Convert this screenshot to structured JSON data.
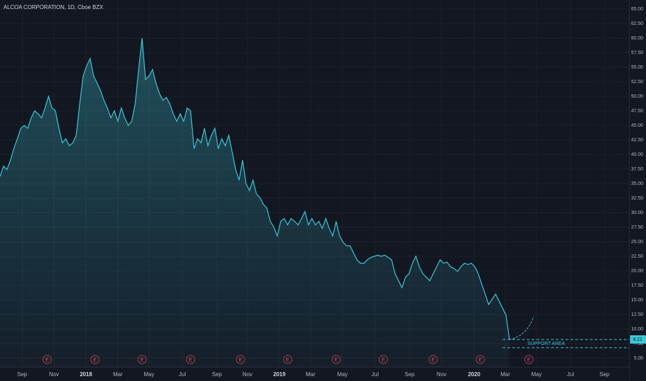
{
  "chart_data": {
    "type": "area",
    "title": "ALCOA CORPORATION, 1D, Cboe BZX",
    "color": "#3cc8d8",
    "values": [
      36.2,
      38,
      37.4,
      39,
      41,
      42.7,
      44.5,
      45,
      44.5,
      46.3,
      47.5,
      47,
      46.3,
      48,
      50,
      48,
      47.5,
      44.5,
      42,
      42.7,
      41.5,
      42,
      43.3,
      48.7,
      53.5,
      55.2,
      56.5,
      53.5,
      52.3,
      51,
      49.3,
      48,
      46.3,
      47.5,
      45.7,
      48,
      46.3,
      45,
      45.7,
      48.7,
      54.6,
      60,
      52.9,
      53.5,
      54.6,
      52.3,
      50.5,
      49.3,
      49.8,
      48.7,
      47,
      45.7,
      47,
      45.7,
      48,
      47.5,
      41,
      42.7,
      42,
      44.5,
      41.5,
      43.3,
      44.5,
      41,
      42.7,
      41.5,
      43.3,
      40.4,
      37.4,
      35.6,
      39,
      35,
      33.8,
      35.6,
      33.2,
      32.6,
      31.4,
      30.8,
      28.5,
      27.5,
      26,
      28.5,
      29,
      27.9,
      29,
      28.5,
      27.9,
      29,
      30.2,
      27.9,
      29,
      27.9,
      28.5,
      27.3,
      29,
      27.3,
      26,
      28.5,
      26,
      24.9,
      24.3,
      24.3,
      23.1,
      21.9,
      21.3,
      21.3,
      21.9,
      22.3,
      22.5,
      22.7,
      22.5,
      22.7,
      22.3,
      21.9,
      19.5,
      18.3,
      17.1,
      18.9,
      19.5,
      21.3,
      22.5,
      20.7,
      19.5,
      18.9,
      18.3,
      19.5,
      20.7,
      21.9,
      21.3,
      21.5,
      20.7,
      20.4,
      19.9,
      20.7,
      21.3,
      21.1,
      21.3,
      20.7,
      19.5,
      17.7,
      16,
      14.2,
      15.1,
      16,
      14.8,
      13.6,
      12.4,
      8.2
    ],
    "xlim": [
      0,
      181.6
    ],
    "xticks": [
      {
        "value": 6.4,
        "label": "Sep"
      },
      {
        "value": 15.6,
        "label": "Nov"
      },
      {
        "value": 24.8,
        "label": "2018"
      },
      {
        "value": 34,
        "label": "Mar"
      },
      {
        "value": 43,
        "label": "May"
      },
      {
        "value": 52.6,
        "label": "Jul"
      },
      {
        "value": 62.6,
        "label": "Sep"
      },
      {
        "value": 71.4,
        "label": "Nov"
      },
      {
        "value": 80.6,
        "label": "2019"
      },
      {
        "value": 89.6,
        "label": "Mar"
      },
      {
        "value": 98.8,
        "label": "May"
      },
      {
        "value": 108.2,
        "label": "Jul"
      },
      {
        "value": 118.2,
        "label": "Sep"
      },
      {
        "value": 127.4,
        "label": "Nov"
      },
      {
        "value": 136.8,
        "label": "2020"
      },
      {
        "value": 145.8,
        "label": "Mar"
      },
      {
        "value": 154.8,
        "label": "May"
      },
      {
        "value": 164.6,
        "label": "Jul"
      },
      {
        "value": 174.4,
        "label": "Sep"
      }
    ],
    "ylim": [
      3.45,
      66.55
    ],
    "yticks": [
      {
        "value": 5,
        "label": "5.00"
      },
      {
        "value": 7.5,
        "label": "7.50"
      },
      {
        "value": 10,
        "label": "10.00"
      },
      {
        "value": 12.5,
        "label": "12.50"
      },
      {
        "value": 15,
        "label": "15.00"
      },
      {
        "value": 17.5,
        "label": "17.50"
      },
      {
        "value": 20,
        "label": "20.00"
      },
      {
        "value": 22.5,
        "label": "22.50"
      },
      {
        "value": 25,
        "label": "25.00"
      },
      {
        "value": 27.5,
        "label": "27.50"
      },
      {
        "value": 30,
        "label": "30.00"
      },
      {
        "value": 32.5,
        "label": "32.50"
      },
      {
        "value": 35,
        "label": "35.00"
      },
      {
        "value": 37.5,
        "label": "37.50"
      },
      {
        "value": 40,
        "label": "40.00"
      },
      {
        "value": 42.5,
        "label": "42.50"
      },
      {
        "value": 45,
        "label": "45.00"
      },
      {
        "value": 47.5,
        "label": "47.50"
      },
      {
        "value": 50,
        "label": "50.00"
      },
      {
        "value": 52.5,
        "label": "52.50"
      },
      {
        "value": 55,
        "label": "55.00"
      },
      {
        "value": 57.5,
        "label": "57.50"
      },
      {
        "value": 60,
        "label": "60.00"
      },
      {
        "value": 62.5,
        "label": "62.50"
      },
      {
        "value": 65,
        "label": "65.00"
      }
    ],
    "grid": true,
    "support_lines": [
      8.2,
      6.8
    ],
    "support_label": "SUPPORT AREA",
    "last_price": {
      "value": 8.21,
      "label": "8.21"
    },
    "earnings": {
      "label": "E",
      "x": [
        13.6,
        27.4,
        41,
        55,
        69.4,
        83,
        97,
        110.6,
        125,
        138.6,
        152.6
      ]
    }
  }
}
